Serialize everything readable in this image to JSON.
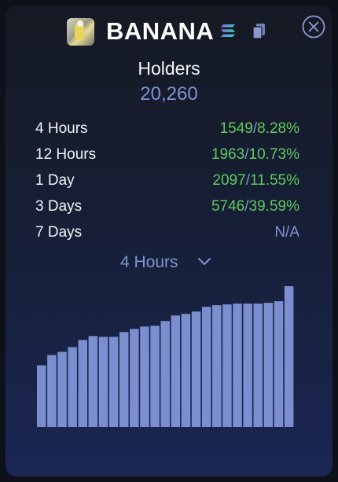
{
  "token": {
    "name": "BANANA",
    "avatar_icon": "banana-token-avatar",
    "chain_icon": "solana-icon",
    "copy_icon": "copy-icon",
    "close_icon": "close-icon"
  },
  "holders": {
    "title": "Holders",
    "count": "20,260"
  },
  "rows": [
    {
      "label": "4 Hours",
      "count": "1549",
      "sep": "/",
      "pct": "8.28%"
    },
    {
      "label": "12 Hours",
      "count": "1963",
      "sep": "/",
      "pct": "10.73%"
    },
    {
      "label": "1 Day",
      "count": "2097",
      "sep": "/",
      "pct": "11.55%"
    },
    {
      "label": "3 Days",
      "count": "5746",
      "sep": "/",
      "pct": "39.59%"
    },
    {
      "label": "7 Days",
      "na": "N/A"
    }
  ],
  "selector": {
    "value": "4 Hours",
    "icon": "chevron-down-icon"
  },
  "colors": {
    "green": "#5fc95f",
    "accent": "#7f93d4",
    "bar": "#7b8ed0"
  },
  "chart_data": {
    "type": "bar",
    "values": [
      78,
      91,
      95,
      101,
      110,
      115,
      114,
      114,
      120,
      124,
      127,
      128,
      134,
      141,
      143,
      146,
      152,
      154,
      155,
      156,
      156,
      156,
      157,
      159,
      178
    ],
    "ylim": [
      0,
      180
    ],
    "grid": false
  }
}
